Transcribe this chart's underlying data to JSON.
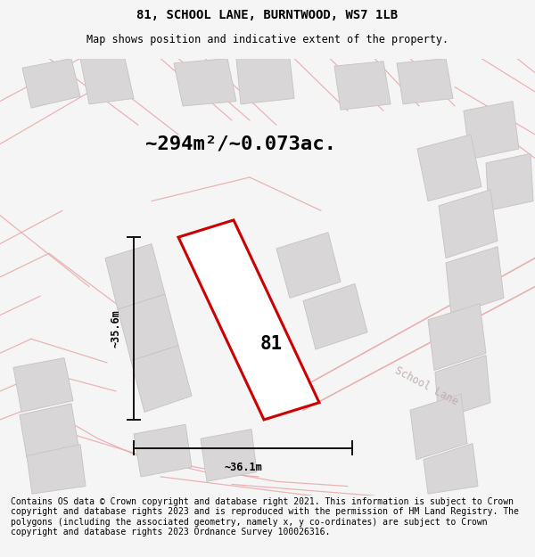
{
  "title": "81, SCHOOL LANE, BURNTWOOD, WS7 1LB",
  "subtitle": "Map shows position and indicative extent of the property.",
  "area_text": "~294m²/~0.073ac.",
  "label_81": "81",
  "dim_width": "~36.1m",
  "dim_height": "~35.6m",
  "road_label": "School Lane",
  "footer": "Contains OS data © Crown copyright and database right 2021. This information is subject to Crown copyright and database rights 2023 and is reproduced with the permission of HM Land Registry. The polygons (including the associated geometry, namely x, y co-ordinates) are subject to Crown copyright and database rights 2023 Ordnance Survey 100026316.",
  "bg_color": "#f5f5f5",
  "map_bg": "#eeecec",
  "plot_outline_color": "#cc0000",
  "dim_line_color": "#111111",
  "building_color": "#d8d6d6",
  "building_edge": "#c8c6c6",
  "title_fontsize": 10,
  "subtitle_fontsize": 8.5,
  "area_fontsize": 16,
  "footer_fontsize": 7.0,
  "road_color": "#e8a8a8",
  "road_lw": 0.9,
  "school_lane_color": "#c0b0b0"
}
